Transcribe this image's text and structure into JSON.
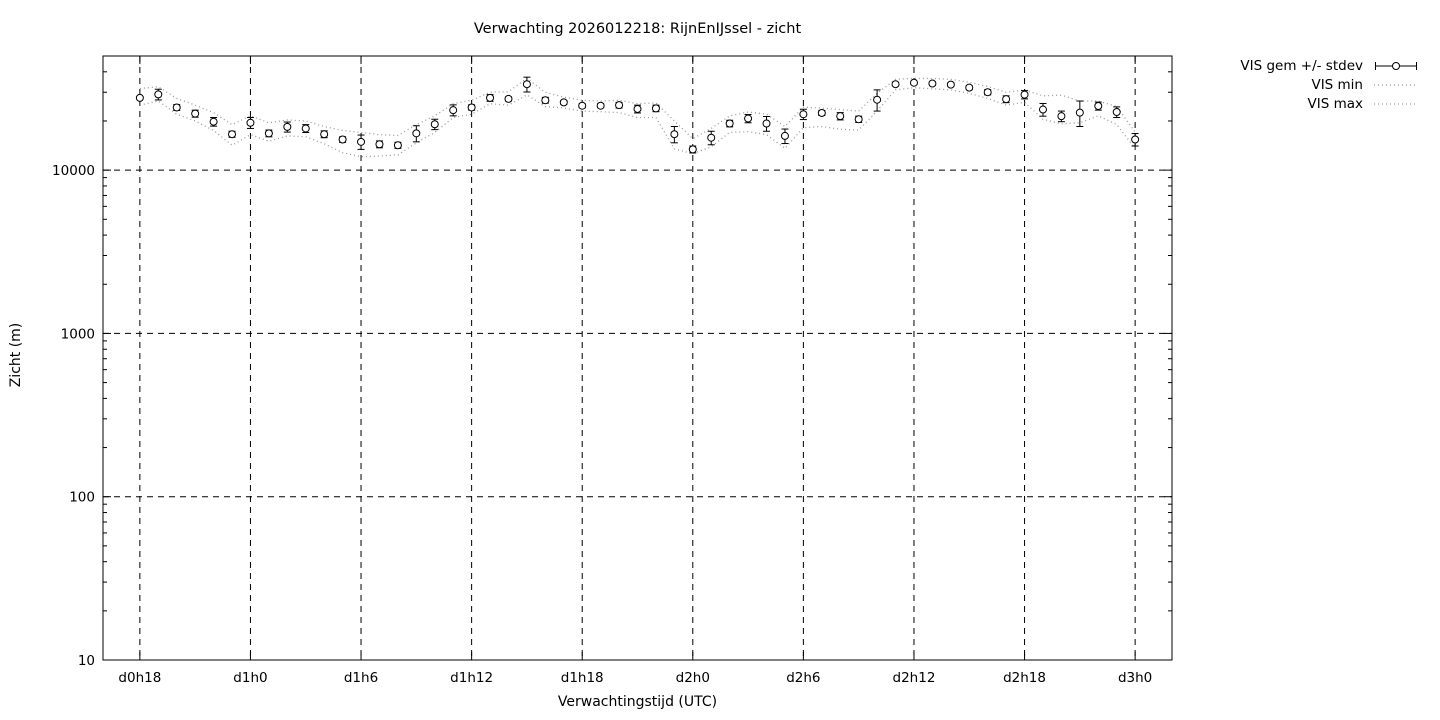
{
  "colors": {
    "foreground": "#000000",
    "background": "#ffffff",
    "minmax_dotted": "#999999"
  },
  "chart_data": {
    "type": "line",
    "title": "Verwachting 2026012218: RijnEnIJssel - zicht",
    "xlabel": "Verwachtingstijd (UTC)",
    "ylabel": "Zicht (m)",
    "y_scale": "log10",
    "xlim": [
      16,
      74
    ],
    "ylim": [
      10,
      50000
    ],
    "grid": true,
    "legend_position": "outside-top-right",
    "marker": "open-circle",
    "xticks": [
      {
        "t": 18,
        "label": "d0h18"
      },
      {
        "t": 24,
        "label": "d1h0"
      },
      {
        "t": 30,
        "label": "d1h6"
      },
      {
        "t": 36,
        "label": "d1h12"
      },
      {
        "t": 42,
        "label": "d1h18"
      },
      {
        "t": 48,
        "label": "d2h0"
      },
      {
        "t": 54,
        "label": "d2h6"
      },
      {
        "t": 60,
        "label": "d2h12"
      },
      {
        "t": 66,
        "label": "d2h18"
      },
      {
        "t": 72,
        "label": "d3h0"
      }
    ],
    "yticks": [
      {
        "v": 10,
        "label": "10"
      },
      {
        "v": 100,
        "label": "100"
      },
      {
        "v": 1000,
        "label": "1000"
      },
      {
        "v": 10000,
        "label": "10000"
      }
    ],
    "hours": [
      18,
      19,
      20,
      21,
      22,
      23,
      24,
      25,
      26,
      27,
      28,
      29,
      30,
      31,
      32,
      33,
      34,
      35,
      36,
      37,
      38,
      39,
      40,
      41,
      42,
      43,
      44,
      45,
      46,
      47,
      48,
      49,
      50,
      51,
      52,
      53,
      54,
      55,
      56,
      57,
      58,
      59,
      60,
      61,
      62,
      63,
      64,
      65,
      66,
      67,
      68,
      69,
      70,
      71,
      72
    ],
    "series": [
      {
        "name": "VIS gem +/- stdev",
        "style": "errorbars",
        "values": [
          27700,
          29100,
          24200,
          22200,
          19800,
          16600,
          19500,
          16800,
          18400,
          18000,
          16600,
          15400,
          14900,
          14400,
          14200,
          16800,
          19100,
          23300,
          24200,
          27700,
          27300,
          33600,
          26800,
          26000,
          24800,
          24800,
          25000,
          23700,
          23900,
          16600,
          13400,
          15800,
          19300,
          20700,
          19300,
          16200,
          22000,
          22400,
          21400,
          20500,
          27000,
          33600,
          34300,
          33900,
          33400,
          32000,
          30000,
          27200,
          29000,
          23500,
          21400,
          22500,
          24700,
          22700,
          15400
        ],
        "stdev": [
          400,
          2200,
          1000,
          1100,
          1200,
          700,
          1500,
          800,
          1300,
          1000,
          800,
          600,
          1500,
          700,
          600,
          1900,
          1400,
          1800,
          900,
          1300,
          800,
          3500,
          1100,
          700,
          700,
          700,
          1000,
          1300,
          1100,
          1900,
          650,
          1500,
          900,
          1200,
          2000,
          1650,
          1600,
          800,
          1100,
          900,
          4000,
          800,
          800,
          800,
          800,
          900,
          1100,
          1300,
          1700,
          2100,
          1600,
          4000,
          1400,
          1700,
          1350
        ]
      },
      {
        "name": "VIS min",
        "style": "dotted",
        "values": [
          25000,
          26500,
          22000,
          20000,
          17500,
          14200,
          16500,
          15000,
          16200,
          16000,
          14500,
          12800,
          12100,
          12200,
          12400,
          14700,
          17000,
          21000,
          22000,
          25500,
          25000,
          28900,
          24500,
          24000,
          23000,
          22800,
          22500,
          21000,
          21000,
          13500,
          12600,
          13900,
          17000,
          17200,
          16500,
          13600,
          18200,
          18500,
          17800,
          17600,
          23000,
          31000,
          32000,
          31500,
          31000,
          29500,
          27500,
          25000,
          26000,
          20500,
          19200,
          19500,
          21500,
          19000,
          13600
        ]
      },
      {
        "name": "VIS max",
        "style": "dotted",
        "values": [
          31600,
          32400,
          27500,
          25000,
          22500,
          19000,
          21500,
          19500,
          20300,
          20000,
          18500,
          17500,
          17000,
          16500,
          16300,
          19000,
          21500,
          25500,
          26800,
          30000,
          30200,
          36500,
          30000,
          28000,
          26800,
          26500,
          26800,
          25500,
          25800,
          20000,
          15600,
          18000,
          21500,
          22700,
          22000,
          18500,
          24300,
          24000,
          23500,
          23000,
          29500,
          36000,
          36500,
          36400,
          36000,
          34500,
          32500,
          30000,
          31000,
          28500,
          28800,
          26500,
          26500,
          24500,
          17100
        ]
      }
    ]
  }
}
